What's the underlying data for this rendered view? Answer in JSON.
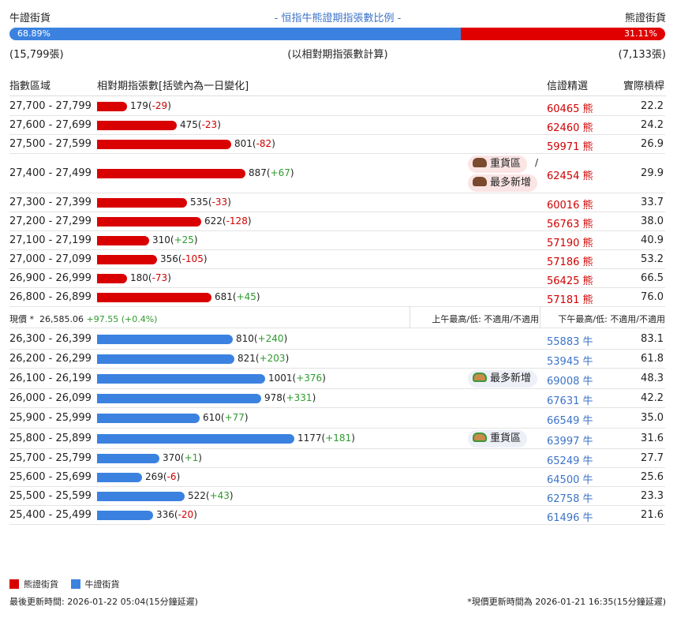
{
  "header": {
    "bull_label": "牛證街貨",
    "title": "- 恒指牛熊證期指張數比例 -",
    "bear_label": "熊證街貨"
  },
  "ratio": {
    "bull_pct": "68.89%",
    "bear_pct": "31.11%",
    "bull_fraction": 0.6889
  },
  "summary": {
    "bull_count": "(15,799張)",
    "note": "(以相對期指張數計算)",
    "bear_count": "(7,133張)"
  },
  "table_headers": {
    "range": "指數區域",
    "contracts": "相對期指張數[括號內為一日變化]",
    "pick": "信證精選",
    "leverage": "實際槓桿"
  },
  "bear_rows": [
    {
      "range": "27,700 - 27,799",
      "value": 179,
      "value_text": "179",
      "change": "-29",
      "code": "60465",
      "unit": "熊",
      "lev": "22.2"
    },
    {
      "range": "27,600 - 27,699",
      "value": 475,
      "value_text": "475",
      "change": "-23",
      "code": "62460",
      "unit": "熊",
      "lev": "24.2"
    },
    {
      "range": "27,500 - 27,599",
      "value": 801,
      "value_text": "801",
      "change": "-82",
      "code": "59971",
      "unit": "熊",
      "lev": "26.9"
    },
    {
      "range": "27,400 - 27,499",
      "value": 887,
      "value_text": "887",
      "change": "+67",
      "code": "62454",
      "unit": "熊",
      "lev": "29.9",
      "badge1": "重貨區",
      "badge_sep": "/",
      "badge2": "最多新增"
    },
    {
      "range": "27,300 - 27,399",
      "value": 535,
      "value_text": "535",
      "change": "-33",
      "code": "60016",
      "unit": "熊",
      "lev": "33.7"
    },
    {
      "range": "27,200 - 27,299",
      "value": 622,
      "value_text": "622",
      "change": "-128",
      "code": "56763",
      "unit": "熊",
      "lev": "38.0"
    },
    {
      "range": "27,100 - 27,199",
      "value": 310,
      "value_text": "310",
      "change": "+25",
      "code": "57190",
      "unit": "熊",
      "lev": "40.9"
    },
    {
      "range": "27,000 - 27,099",
      "value": 356,
      "value_text": "356",
      "change": "-105",
      "code": "57186",
      "unit": "熊",
      "lev": "53.2"
    },
    {
      "range": "26,900 - 26,999",
      "value": 180,
      "value_text": "180",
      "change": "-73",
      "code": "56425",
      "unit": "熊",
      "lev": "66.5"
    },
    {
      "range": "26,800 - 26,899",
      "value": 681,
      "value_text": "681",
      "change": "+45",
      "code": "57181",
      "unit": "熊",
      "lev": "76.0"
    }
  ],
  "price": {
    "label": "現價 *",
    "value": "26,585.06",
    "change": "+97.55 (+0.4%)",
    "am": "上午最高/低: 不適用/不適用",
    "pm": "下午最高/低: 不適用/不適用"
  },
  "bull_rows": [
    {
      "range": "26,300 - 26,399",
      "value": 810,
      "value_text": "810",
      "change": "+240",
      "code": "55883",
      "unit": "牛",
      "lev": "83.1"
    },
    {
      "range": "26,200 - 26,299",
      "value": 821,
      "value_text": "821",
      "change": "+203",
      "code": "53945",
      "unit": "牛",
      "lev": "61.8"
    },
    {
      "range": "26,100 - 26,199",
      "value": 1001,
      "value_text": "1001",
      "change": "+376",
      "code": "69008",
      "unit": "牛",
      "lev": "48.3",
      "badge1": "最多新增"
    },
    {
      "range": "26,000 - 26,099",
      "value": 978,
      "value_text": "978",
      "change": "+331",
      "code": "67631",
      "unit": "牛",
      "lev": "42.2"
    },
    {
      "range": "25,900 - 25,999",
      "value": 610,
      "value_text": "610",
      "change": "+77",
      "code": "66549",
      "unit": "牛",
      "lev": "35.0"
    },
    {
      "range": "25,800 - 25,899",
      "value": 1177,
      "value_text": "1177",
      "change": "+181",
      "code": "63997",
      "unit": "牛",
      "lev": "31.6",
      "badge1": "重貨區"
    },
    {
      "range": "25,700 - 25,799",
      "value": 370,
      "value_text": "370",
      "change": "+1",
      "code": "65249",
      "unit": "牛",
      "lev": "27.7"
    },
    {
      "range": "25,600 - 25,699",
      "value": 269,
      "value_text": "269",
      "change": "-6",
      "code": "64500",
      "unit": "牛",
      "lev": "25.6"
    },
    {
      "range": "25,500 - 25,599",
      "value": 522,
      "value_text": "522",
      "change": "+43",
      "code": "62758",
      "unit": "牛",
      "lev": "23.3"
    },
    {
      "range": "25,400 - 25,499",
      "value": 336,
      "value_text": "336",
      "change": "-20",
      "code": "61496",
      "unit": "牛",
      "lev": "21.6"
    }
  ],
  "legend": {
    "bear": "熊證街貨",
    "bull": "牛證街貨"
  },
  "footer": {
    "last_update": "最後更新時間: 2026-01-22 05:04(15分鐘延遲)",
    "price_update": "*現價更新時間為 2026-01-21 16:35(15分鐘延遲)"
  },
  "colors": {
    "bear": "#d90000",
    "bull": "#3b82e0",
    "positive": "#2e9a2e",
    "negative": "#d00000"
  }
}
